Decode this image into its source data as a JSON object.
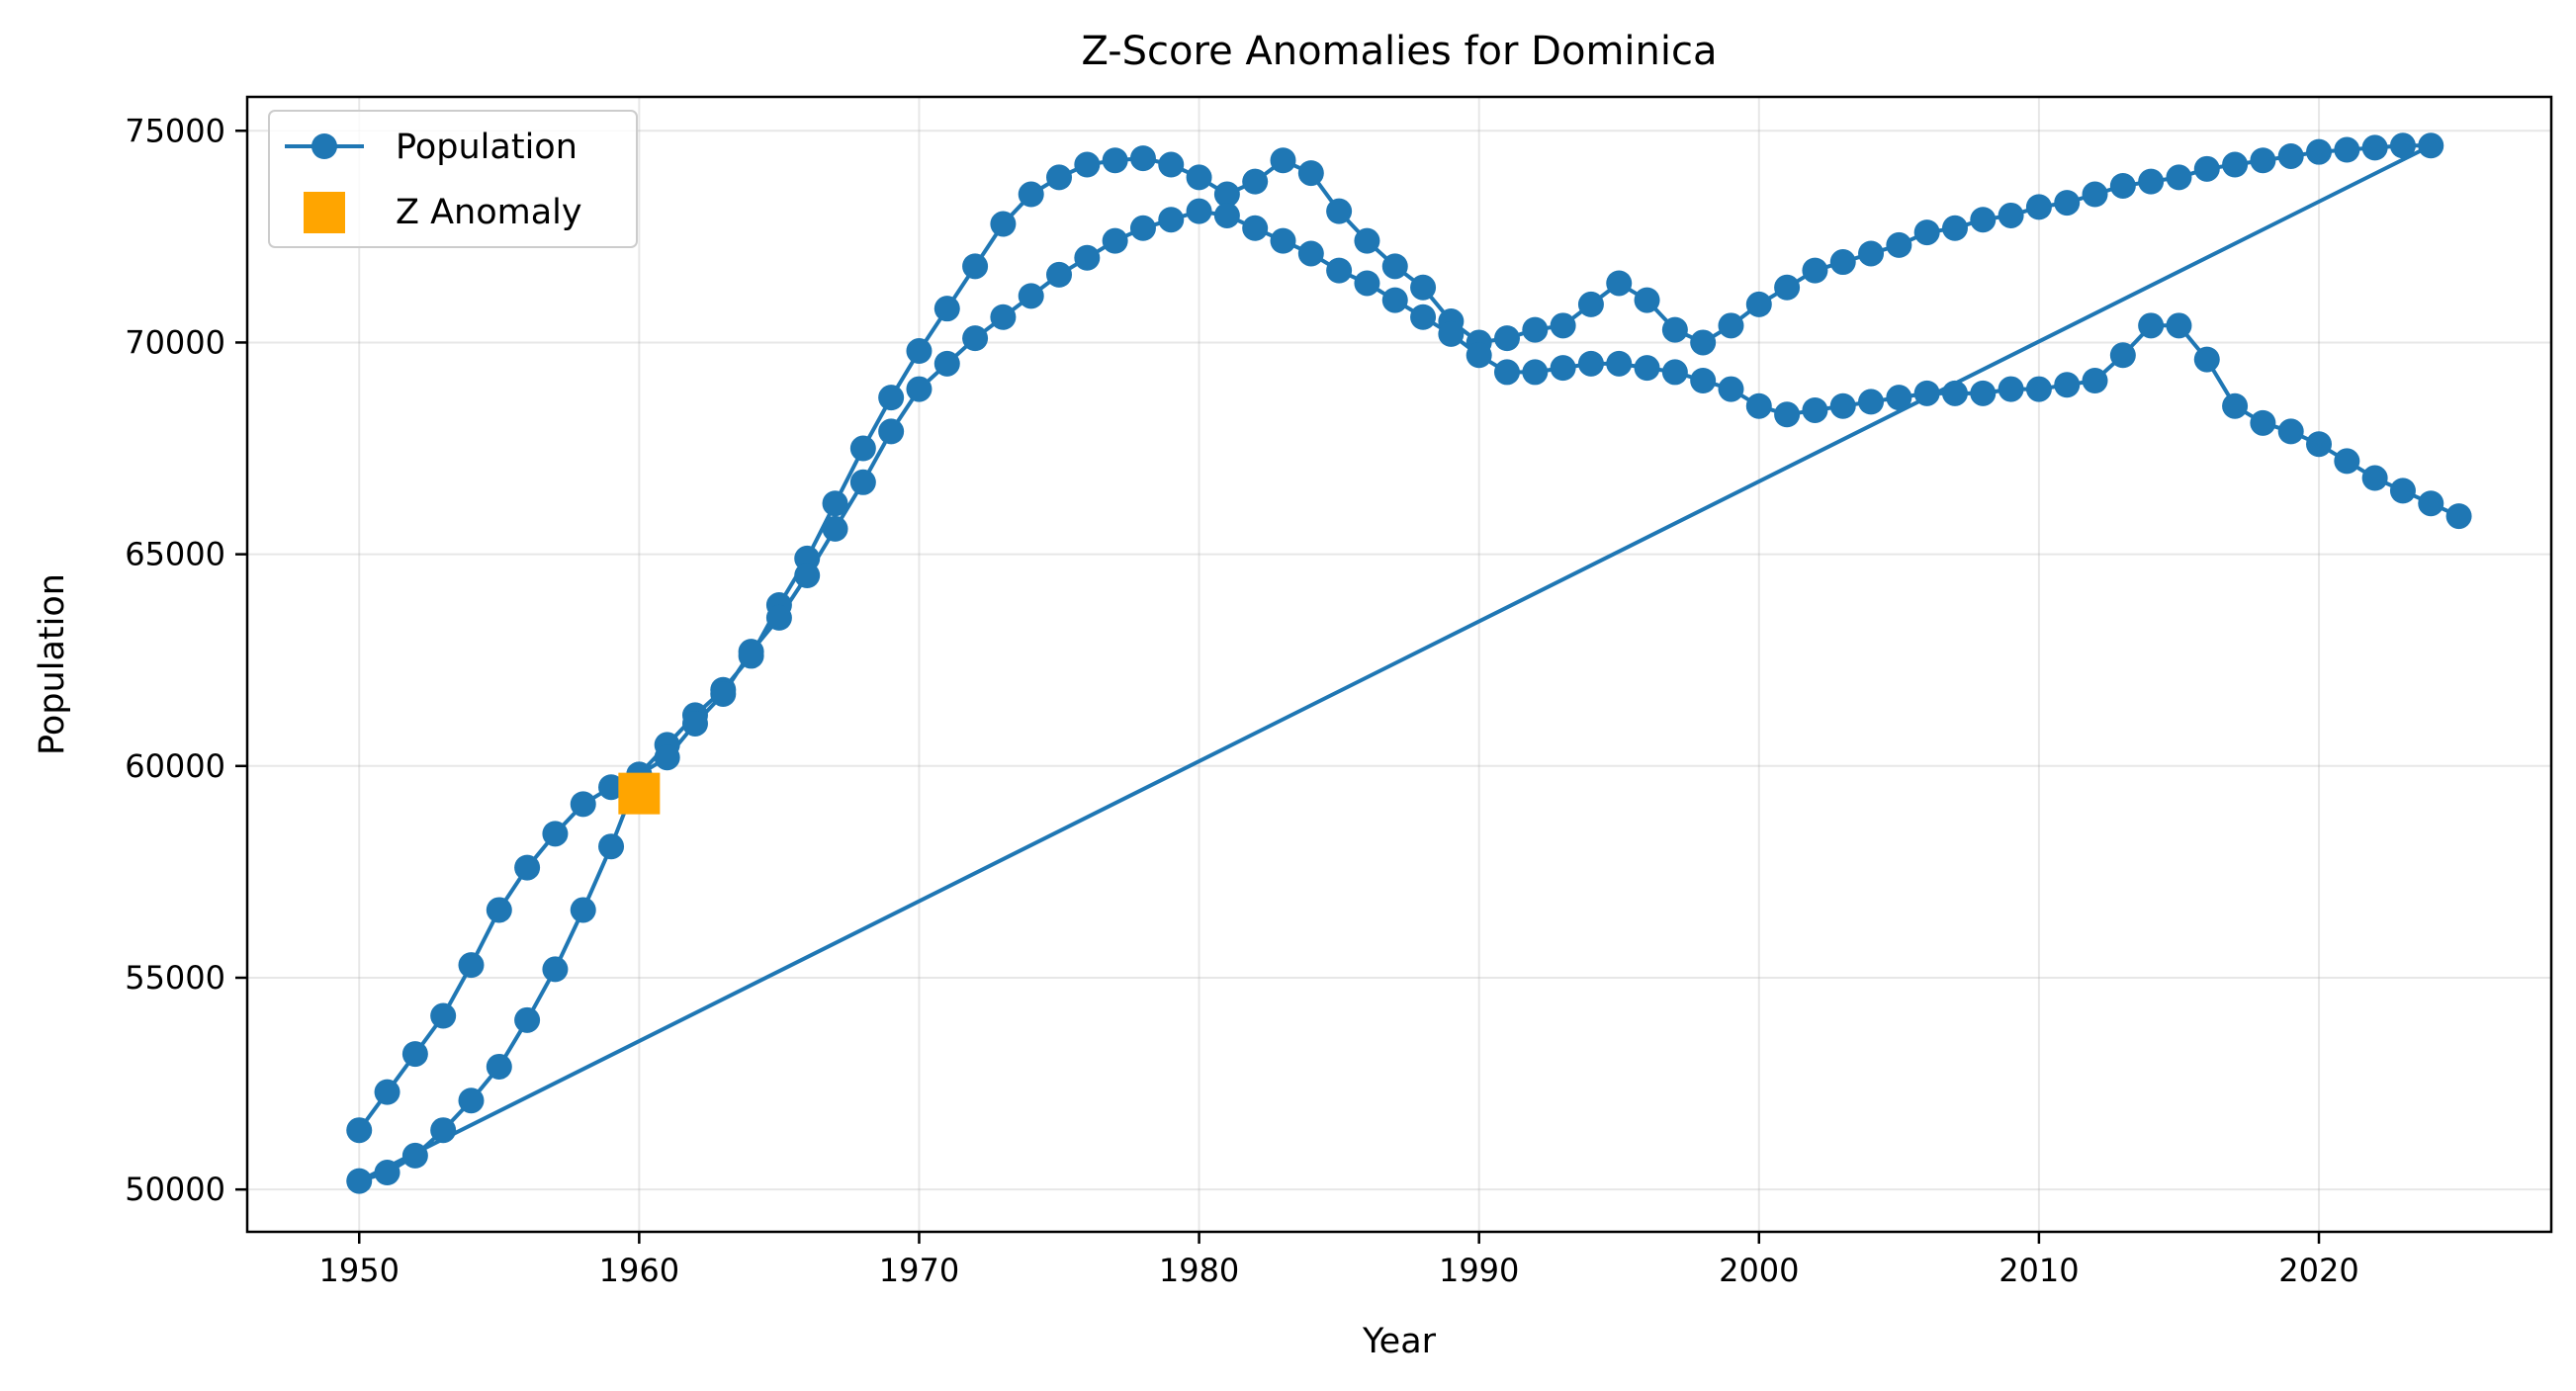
{
  "chart_data": {
    "type": "line",
    "title": "Z-Score Anomalies for Dominica",
    "xlabel": "Year",
    "ylabel": "Population",
    "xlim": [
      1946,
      2028.3
    ],
    "ylim": [
      49000,
      75800
    ],
    "x_ticks": [
      1950,
      1960,
      1970,
      1980,
      1990,
      2000,
      2010,
      2020
    ],
    "y_ticks": [
      50000,
      55000,
      60000,
      65000,
      70000,
      75000
    ],
    "grid": true,
    "legend_position": "top-left",
    "series": [
      {
        "name": "Population",
        "color": "#1f77b4",
        "marker": "circle",
        "x": [
          1950,
          1951,
          1952,
          1953,
          1954,
          1955,
          1956,
          1957,
          1958,
          1959,
          1960,
          1961,
          1962,
          1963,
          1964,
          1965,
          1966,
          1967,
          1968,
          1969,
          1970,
          1971,
          1972,
          1973,
          1974,
          1975,
          1976,
          1977,
          1978,
          1979,
          1980,
          1981,
          1982,
          1983,
          1984,
          1985,
          1986,
          1987,
          1988,
          1989,
          1990,
          1991,
          1992,
          1993,
          1994,
          1995,
          1996,
          1997,
          1998,
          1999,
          2000,
          2001,
          2002,
          2003,
          2004,
          2005,
          2006,
          2007,
          2008,
          2009,
          2010,
          2011,
          2012,
          2013,
          2014,
          2015,
          2016,
          2017,
          2018,
          2019,
          2020,
          2021,
          2022,
          2023,
          2024,
          1950,
          1951,
          1952,
          1953,
          1954,
          1955,
          1956,
          1957,
          1958,
          1959,
          1960,
          1961,
          1962,
          1963,
          1964,
          1965,
          1966,
          1967,
          1968,
          1969,
          1970,
          1971,
          1972,
          1973,
          1974,
          1975,
          1976,
          1977,
          1978,
          1979,
          1980,
          1981,
          1982,
          1983,
          1984,
          1985,
          1986,
          1987,
          1988,
          1989,
          1990,
          1991,
          1992,
          1993,
          1994,
          1995,
          1996,
          1997,
          1998,
          1999,
          2000,
          2001,
          2002,
          2003,
          2004,
          2005,
          2006,
          2007,
          2008,
          2009,
          2010,
          2011,
          2012,
          2013,
          2014,
          2015,
          2016,
          2017,
          2018,
          2019,
          2020,
          2021,
          2022,
          2023,
          2024,
          2025
        ],
        "y": [
          51400,
          52300,
          53200,
          54100,
          55300,
          56600,
          57600,
          58400,
          59100,
          59500,
          59800,
          60500,
          61200,
          61800,
          62600,
          63800,
          64900,
          66200,
          67500,
          68700,
          69800,
          70800,
          71800,
          72800,
          73500,
          73900,
          74200,
          74300,
          74350,
          74200,
          73900,
          73500,
          73800,
          74300,
          74000,
          73100,
          72400,
          71800,
          71300,
          70500,
          70000,
          70100,
          70300,
          70400,
          70900,
          71400,
          71000,
          70300,
          70000,
          70400,
          70900,
          71300,
          71700,
          71900,
          72100,
          72300,
          72600,
          72700,
          72900,
          73000,
          73200,
          73300,
          73500,
          73700,
          73800,
          73900,
          74100,
          74200,
          74300,
          74400,
          74500,
          74550,
          74600,
          74650,
          74650,
          50200,
          50400,
          50800,
          51400,
          52100,
          52900,
          54000,
          55200,
          56600,
          58100,
          59800,
          60200,
          61000,
          61700,
          62700,
          63500,
          64500,
          65600,
          66700,
          67900,
          68900,
          69500,
          70100,
          70600,
          71100,
          71600,
          72000,
          72400,
          72700,
          72900,
          73100,
          73000,
          72700,
          72400,
          72100,
          71700,
          71400,
          71000,
          70600,
          70200,
          69700,
          69300,
          69300,
          69400,
          69500,
          69500,
          69400,
          69300,
          69100,
          68900,
          68500,
          68300,
          68400,
          68500,
          68600,
          68700,
          68800,
          68800,
          68800,
          68900,
          68900,
          69000,
          69100,
          69700,
          70400,
          70400,
          69600,
          68500,
          68100,
          67900,
          67600,
          67200,
          66800,
          66500,
          66200,
          65900
        ]
      },
      {
        "name": "Z Anomaly",
        "color": "#ffa500",
        "marker": "square",
        "x": [
          1960
        ],
        "y": [
          59350
        ]
      }
    ]
  }
}
